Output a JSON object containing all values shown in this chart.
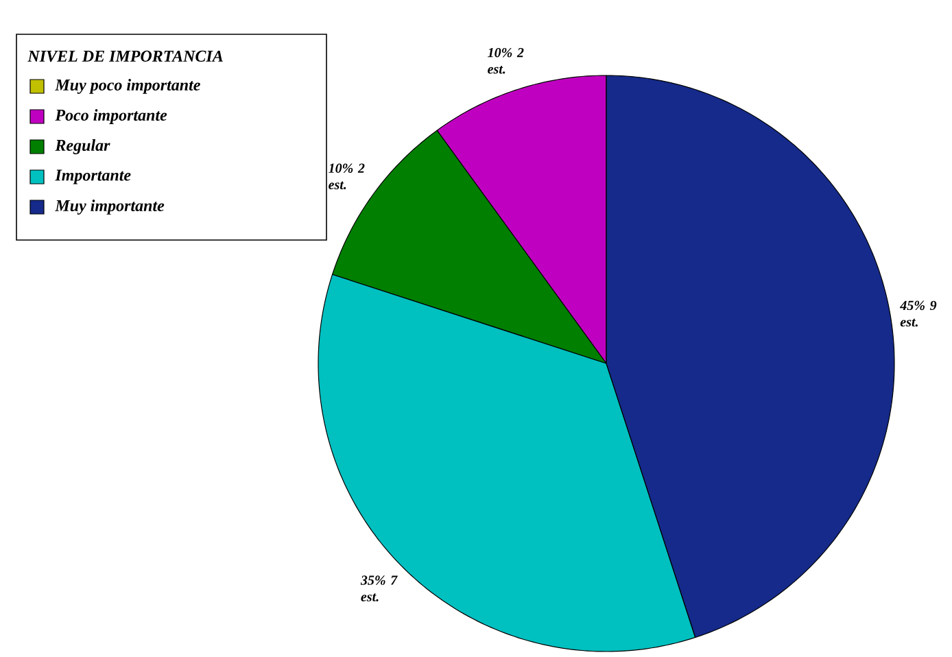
{
  "chart_data": {
    "type": "pie",
    "legend_title": "NIVEL DE IMPORTANCIA",
    "categories": [
      "Muy poco importante",
      "Poco importante",
      "Regular",
      "Importante",
      "Muy importante"
    ],
    "values": [
      0,
      10,
      10,
      35,
      45
    ],
    "colors": [
      "#c0c000",
      "#c000c0",
      "#007f00",
      "#00c0c0",
      "#152a8a"
    ],
    "value_labels": [
      null,
      "10% 2 est.",
      "10% 2 est.",
      "35% 7 est.",
      "45% 9 est."
    ],
    "legend": "top left"
  }
}
